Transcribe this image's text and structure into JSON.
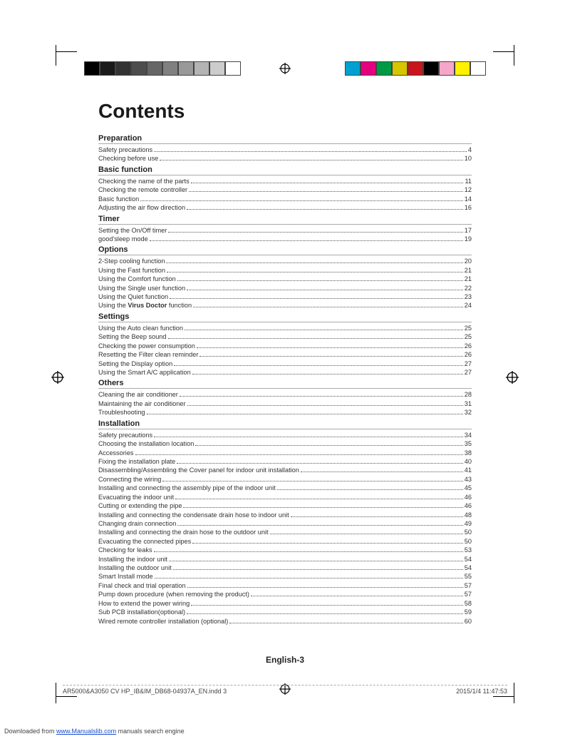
{
  "print_marks": {
    "grayscale_swatches": [
      "#000000",
      "#1a1a1a",
      "#333333",
      "#4d4d4d",
      "#666666",
      "#808080",
      "#999999",
      "#b3b3b3",
      "#cccccc",
      "#ffffff"
    ],
    "color_swatches": [
      "#00a0d2",
      "#e4007f",
      "#009944",
      "#d7c500",
      "#c8161d",
      "#000000",
      "#f5a6c9",
      "#fff100",
      "#ffffff"
    ],
    "registration_symbol": "⊕"
  },
  "title": "Contents",
  "sections": [
    {
      "heading": "Preparation",
      "items": [
        {
          "label_parts": [
            "Safety precautions"
          ],
          "page": "4"
        },
        {
          "label_parts": [
            "Checking before use"
          ],
          "page": "10"
        }
      ]
    },
    {
      "heading": "Basic function",
      "items": [
        {
          "label_parts": [
            "Checking the name of the parts"
          ],
          "page": "11"
        },
        {
          "label_parts": [
            "Checking the remote controller"
          ],
          "page": "12"
        },
        {
          "label_parts": [
            "Basic function"
          ],
          "page": "14"
        },
        {
          "label_parts": [
            "Adjusting the air flow direction"
          ],
          "page": "16"
        }
      ]
    },
    {
      "heading": "Timer",
      "items": [
        {
          "label_parts": [
            "Setting the On/Off timer"
          ],
          "page": "17"
        },
        {
          "label_parts": [
            "good'sleep mode"
          ],
          "page": "19"
        }
      ]
    },
    {
      "heading": "Options",
      "items": [
        {
          "label_parts": [
            "2-Step cooling function"
          ],
          "page": "20"
        },
        {
          "label_parts": [
            "Using the Fast function"
          ],
          "page": "21"
        },
        {
          "label_parts": [
            "Using the Comfort function"
          ],
          "page": "21"
        },
        {
          "label_parts": [
            "Using the Single user function"
          ],
          "page": "22"
        },
        {
          "label_parts": [
            "Using the Quiet function"
          ],
          "page": "23"
        },
        {
          "label_parts": [
            "Using the ",
            {
              "bold": "Virus Doctor"
            },
            " function"
          ],
          "page": "24"
        }
      ]
    },
    {
      "heading": "Settings",
      "items": [
        {
          "label_parts": [
            "Using the Auto clean function"
          ],
          "page": "25"
        },
        {
          "label_parts": [
            "Setting the Beep sound"
          ],
          "page": "25"
        },
        {
          "label_parts": [
            "Checking the power consumption"
          ],
          "page": "26"
        },
        {
          "label_parts": [
            "Resetting the Filter clean reminder"
          ],
          "page": "26"
        },
        {
          "label_parts": [
            "Setting the Display option"
          ],
          "page": "27"
        },
        {
          "label_parts": [
            "Using the Smart A/C application"
          ],
          "page": "27"
        }
      ]
    },
    {
      "heading": "Others",
      "items": [
        {
          "label_parts": [
            "Cleaning the air conditioner"
          ],
          "page": "28"
        },
        {
          "label_parts": [
            "Maintaining the air conditioner"
          ],
          "page": "31"
        },
        {
          "label_parts": [
            "Troubleshooting"
          ],
          "page": "32"
        }
      ]
    },
    {
      "heading": "Installation",
      "items": [
        {
          "label_parts": [
            "Safety precautions"
          ],
          "page": "34"
        },
        {
          "label_parts": [
            "Choosing the installation location"
          ],
          "page": "35"
        },
        {
          "label_parts": [
            "Accessories"
          ],
          "page": "38"
        },
        {
          "label_parts": [
            "Fixing the installation plate"
          ],
          "page": "40"
        },
        {
          "label_parts": [
            "Disassembling/Assembling the Cover panel for indoor unit installation"
          ],
          "page": "41"
        },
        {
          "label_parts": [
            "Connecting the wiring"
          ],
          "page": "43"
        },
        {
          "label_parts": [
            "Installing and connecting the assembly pipe of the indoor unit"
          ],
          "page": "45"
        },
        {
          "label_parts": [
            "Evacuating the indoor unit"
          ],
          "page": "46"
        },
        {
          "label_parts": [
            "Cutting or extending the pipe"
          ],
          "page": "46"
        },
        {
          "label_parts": [
            "Installing and connecting the condensate drain hose to indoor unit"
          ],
          "page": "48"
        },
        {
          "label_parts": [
            "Changing drain connection"
          ],
          "page": "49"
        },
        {
          "label_parts": [
            "Installing and connecting the drain hose to the outdoor unit"
          ],
          "page": "50"
        },
        {
          "label_parts": [
            "Evacuating the connected pipes"
          ],
          "page": "50"
        },
        {
          "label_parts": [
            "Checking for leaks"
          ],
          "page": "53"
        },
        {
          "label_parts": [
            "Installing the indoor unit"
          ],
          "page": "54"
        },
        {
          "label_parts": [
            "Installing the outdoor unit"
          ],
          "page": "54"
        },
        {
          "label_parts": [
            "Smart Install mode"
          ],
          "page": "55"
        },
        {
          "label_parts": [
            "Final check and trial operation"
          ],
          "page": "57"
        },
        {
          "label_parts": [
            "Pump down procedure (when removing the product)"
          ],
          "page": "57"
        },
        {
          "label_parts": [
            "How to extend the power wiring"
          ],
          "page": "58"
        },
        {
          "label_parts": [
            "Sub PCB installation(optional)"
          ],
          "page": "59"
        },
        {
          "label_parts": [
            "Wired remote controller installation (optional)"
          ],
          "page": "60"
        }
      ]
    }
  ],
  "footer_page_label": "English-3",
  "imprint": {
    "left": "AR5000&A3050 CV HP_IB&IM_DB68-04937A_EN.indd   3",
    "right": "2015/1/4   11:47:53"
  },
  "download_note": {
    "prefix": "Downloaded from ",
    "link_text": "www.Manualslib.com",
    "suffix": " manuals search engine"
  }
}
